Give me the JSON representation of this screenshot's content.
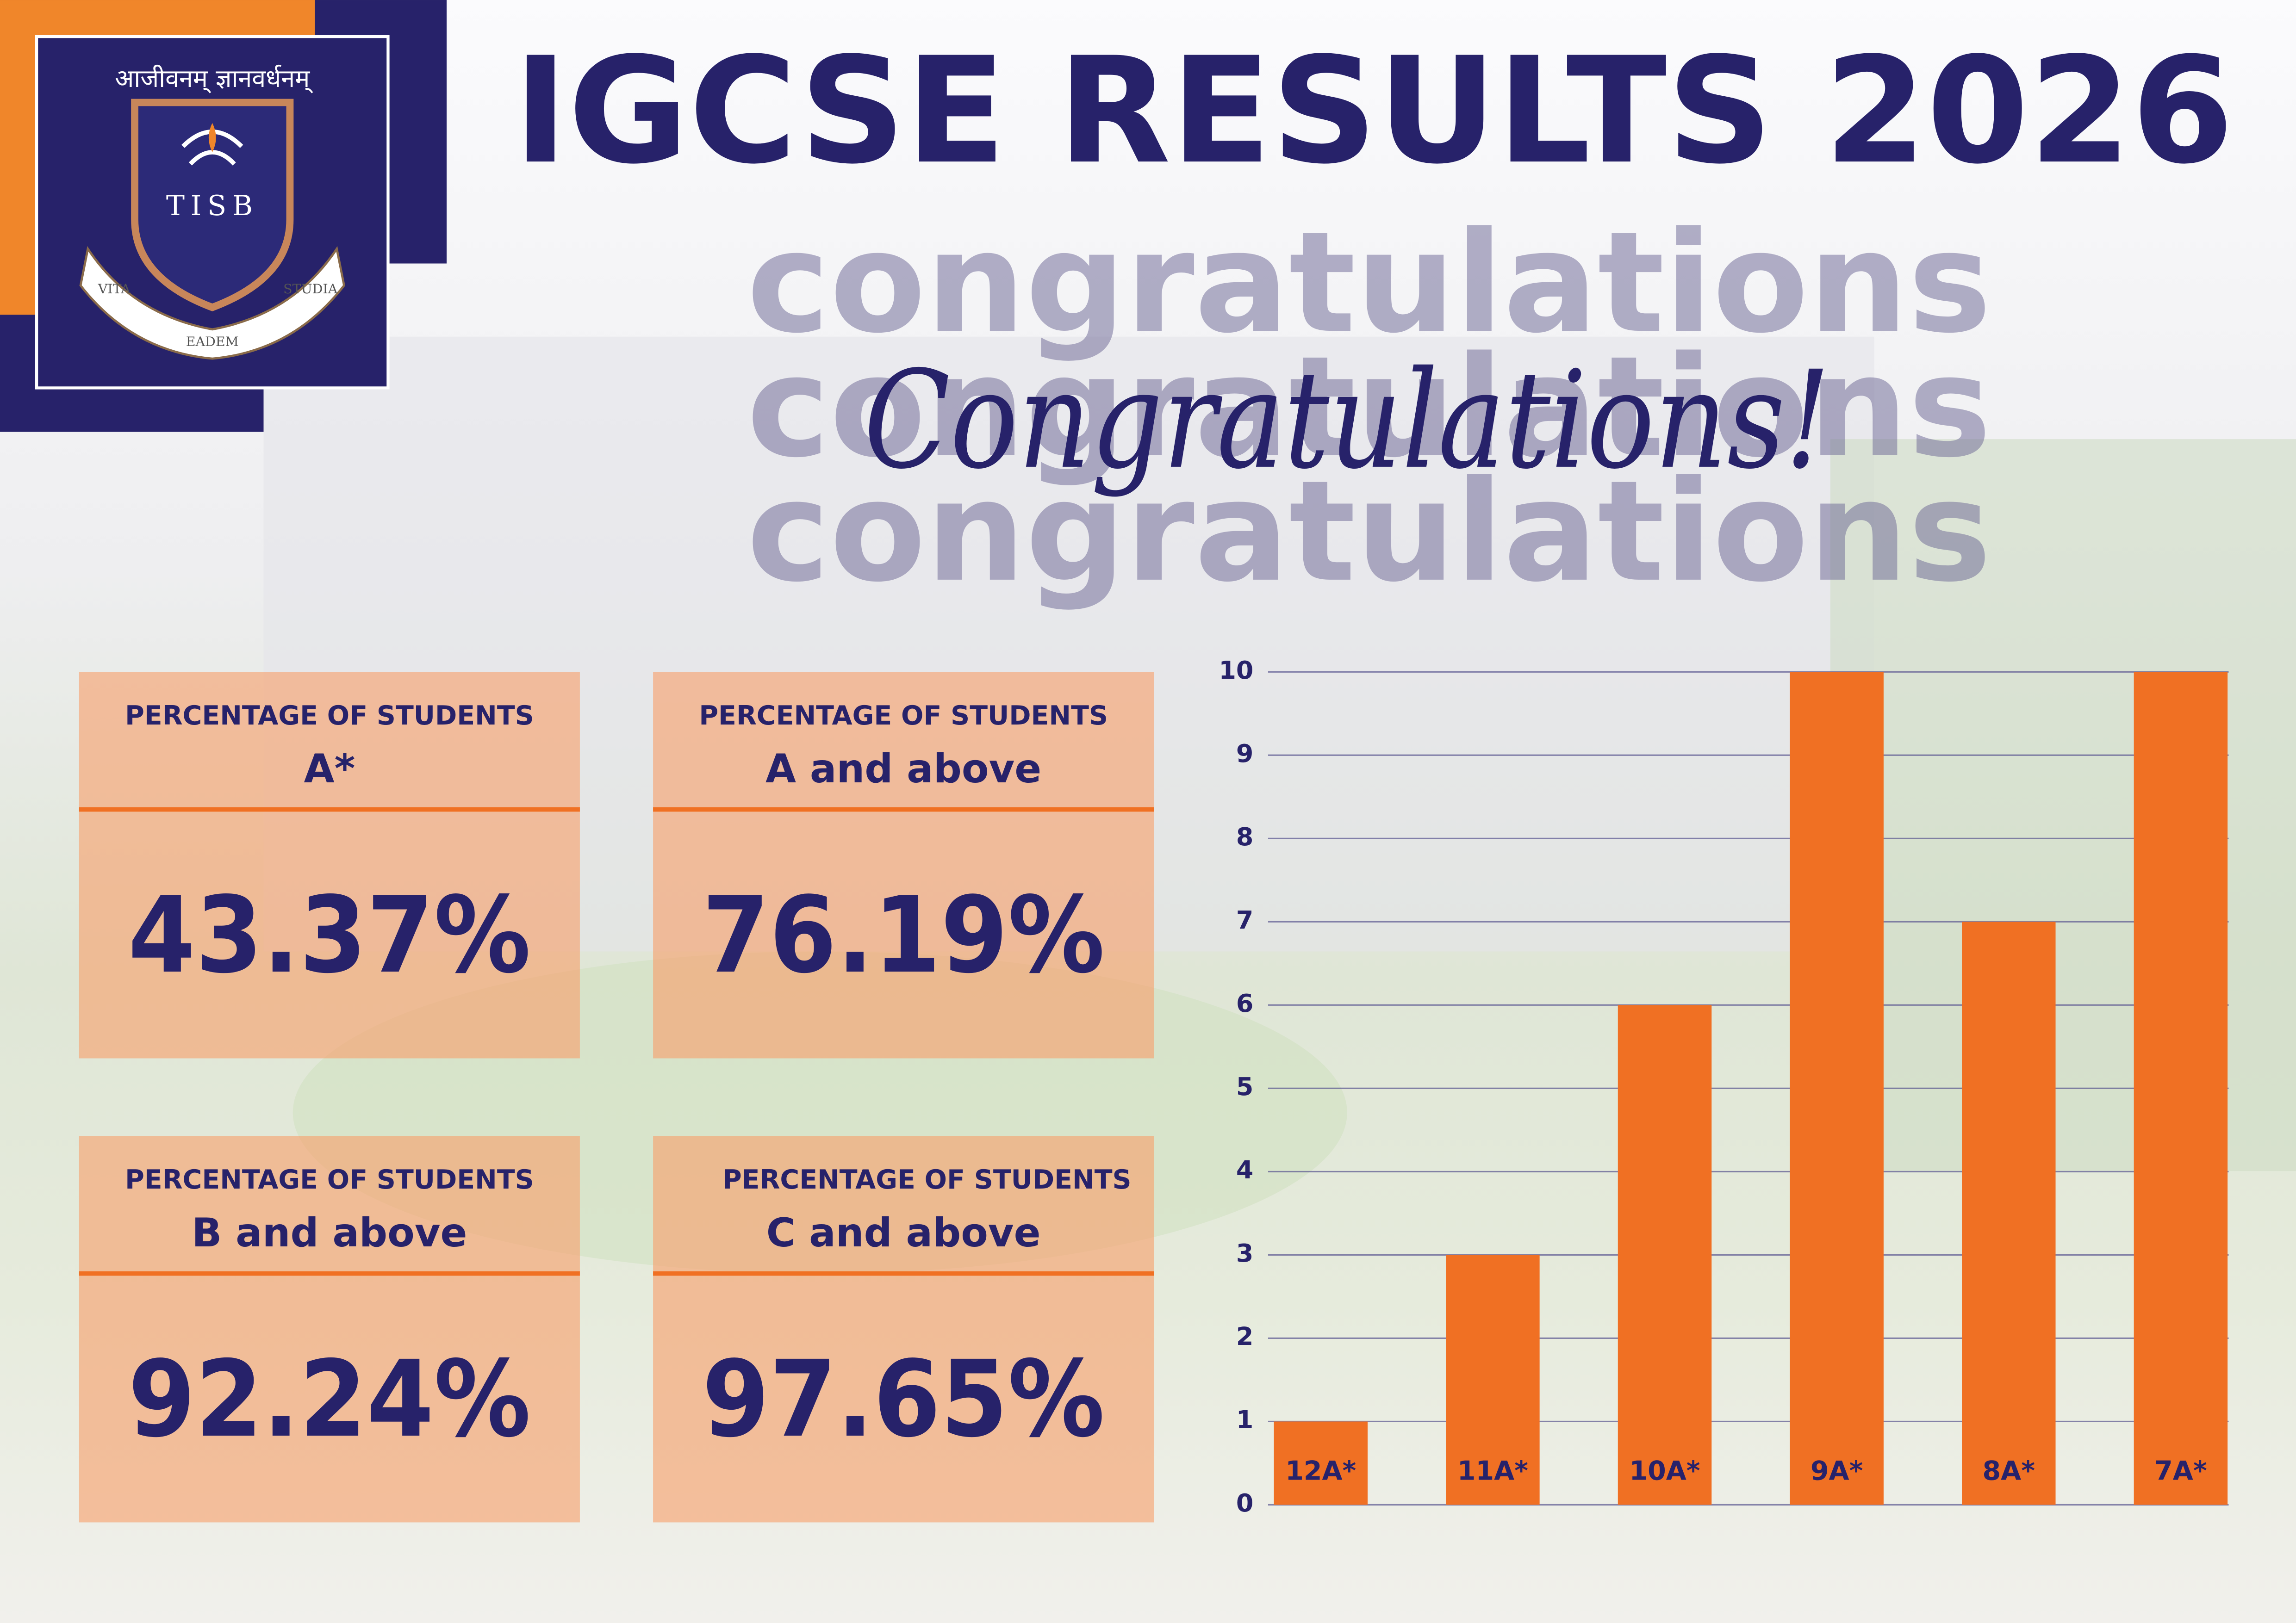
{
  "header": {
    "logo_motto": "आजीवनम् ज्ञानवर्धनम्",
    "logo_initials": "TISB",
    "logo_scroll": [
      "VITA",
      "EADEM",
      "STUDIA"
    ],
    "title": "IGCSE RESULTS 2026",
    "watermark": "congratulations",
    "greeting": "Congratulations!"
  },
  "stats": [
    {
      "label": "PERCENTAGE OF STUDENTS",
      "grade": "A*",
      "value": "43.37%"
    },
    {
      "label": "PERCENTAGE OF STUDENTS",
      "grade": "A and above",
      "value": "76.19%"
    },
    {
      "label": "PERCENTAGE OF STUDENTS",
      "grade": "B and above",
      "value": "92.24%"
    },
    {
      "label": "PERCENTAGE OF STUDENTS",
      "grade": "C and above",
      "value": "97.65%"
    }
  ],
  "chart_data": {
    "type": "bar",
    "categories": [
      "12A*",
      "11A*",
      "10A*",
      "9A*",
      "8A*",
      "7A*"
    ],
    "values": [
      1,
      3,
      6,
      10,
      7,
      10
    ],
    "color": "#f07023",
    "ylim": [
      0,
      10
    ],
    "yticks": [
      0,
      1,
      2,
      3,
      4,
      5,
      6,
      7,
      8,
      9,
      10
    ],
    "grid": true
  }
}
